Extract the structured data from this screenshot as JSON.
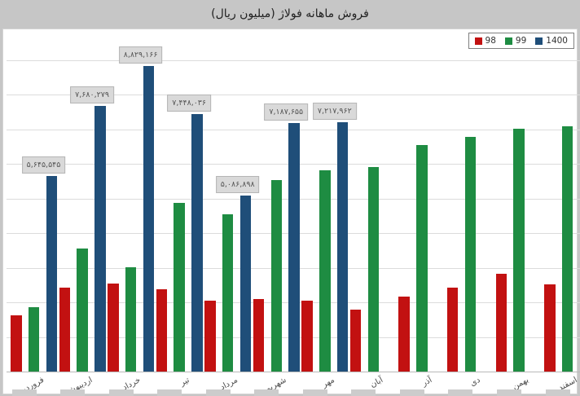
{
  "title": "فروش ماهانه فولاژ (میلیون ریال)",
  "legend": [
    {
      "label": "98",
      "color": "#c21111"
    },
    {
      "label": "99",
      "color": "#1e8c42"
    },
    {
      "label": "1400",
      "color": "#1f4e79"
    }
  ],
  "chart_data": {
    "type": "bar",
    "title": "فروش ماهانه فولاژ (میلیون ریال)",
    "categories": [
      "فروردین",
      "اردیبهشت",
      "خرداد",
      "تیر",
      "مرداد",
      "شهریور",
      "مهر",
      "آبان",
      "آذر",
      "دی",
      "بهمن",
      "اسفند"
    ],
    "series": [
      {
        "name": "98",
        "color": "#c21111",
        "values": [
          1630000,
          2430000,
          2540000,
          2370000,
          2040000,
          2100000,
          2040000,
          1800000,
          2160000,
          2430000,
          2830000,
          2510000
        ]
      },
      {
        "name": "99",
        "color": "#1e8c42",
        "values": [
          1860000,
          3560000,
          3020000,
          4880000,
          4550000,
          5540000,
          5820000,
          5910000,
          6550000,
          6790000,
          7020000,
          7090000
        ]
      },
      {
        "name": "1400",
        "color": "#1f4e79",
        "values": [
          5645545,
          7680279,
          8829166,
          7448036,
          5086898,
          7187655,
          7217962,
          null,
          null,
          null,
          null,
          null
        ]
      }
    ],
    "data_labels": {
      "series": "1400",
      "values": [
        "۵,۶۴۵,۵۴۵",
        "۷,۶۸۰,۲۷۹",
        "۸,۸۲۹,۱۶۶",
        "۷,۴۴۸,۰۳۶",
        "۵,۰۸۶,۸۹۸",
        "۷,۱۸۷,۶۵۵",
        "۷,۲۱۷,۹۶۲"
      ]
    },
    "ylim": [
      0,
      9000000
    ],
    "grid": true,
    "legend_position": "top-right",
    "xlabel": "",
    "ylabel": ""
  }
}
